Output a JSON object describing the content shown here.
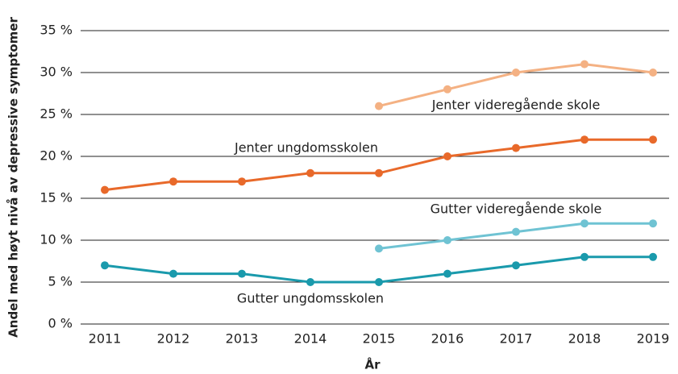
{
  "chart_data": {
    "type": "line",
    "x_label": "År",
    "y_label": "Andel med høyt nivå av depressive symptomer",
    "x": [
      2011,
      2012,
      2013,
      2014,
      2015,
      2016,
      2017,
      2018,
      2019
    ],
    "xticks": [
      2011,
      2012,
      2013,
      2014,
      2015,
      2016,
      2017,
      2018,
      2019
    ],
    "ylim": [
      0,
      35
    ],
    "yticks": [
      {
        "value": 0,
        "label": "0 %"
      },
      {
        "value": 5,
        "label": "5 %"
      },
      {
        "value": 10,
        "label": "10 %"
      },
      {
        "value": 15,
        "label": "15 %"
      },
      {
        "value": 20,
        "label": "20 %"
      },
      {
        "value": 25,
        "label": "25 %"
      },
      {
        "value": 30,
        "label": "30 %"
      },
      {
        "value": 35,
        "label": "35 %"
      }
    ],
    "grid": true,
    "series": [
      {
        "name": "Jenter videregående skole",
        "color": "#f4b183",
        "values": [
          null,
          null,
          null,
          null,
          26,
          28,
          30,
          31,
          30
        ]
      },
      {
        "name": "Jenter ungdomsskolen",
        "color": "#e8692a",
        "values": [
          16,
          17,
          17,
          18,
          18,
          20,
          21,
          22,
          22
        ]
      },
      {
        "name": "Gutter videregående skole",
        "color": "#6fc3d3",
        "values": [
          null,
          null,
          null,
          null,
          9,
          10,
          11,
          12,
          12
        ]
      },
      {
        "name": "Gutter ungdomsskolen",
        "color": "#1a9aac",
        "values": [
          7,
          6,
          6,
          5,
          5,
          6,
          7,
          8,
          8
        ]
      }
    ]
  }
}
